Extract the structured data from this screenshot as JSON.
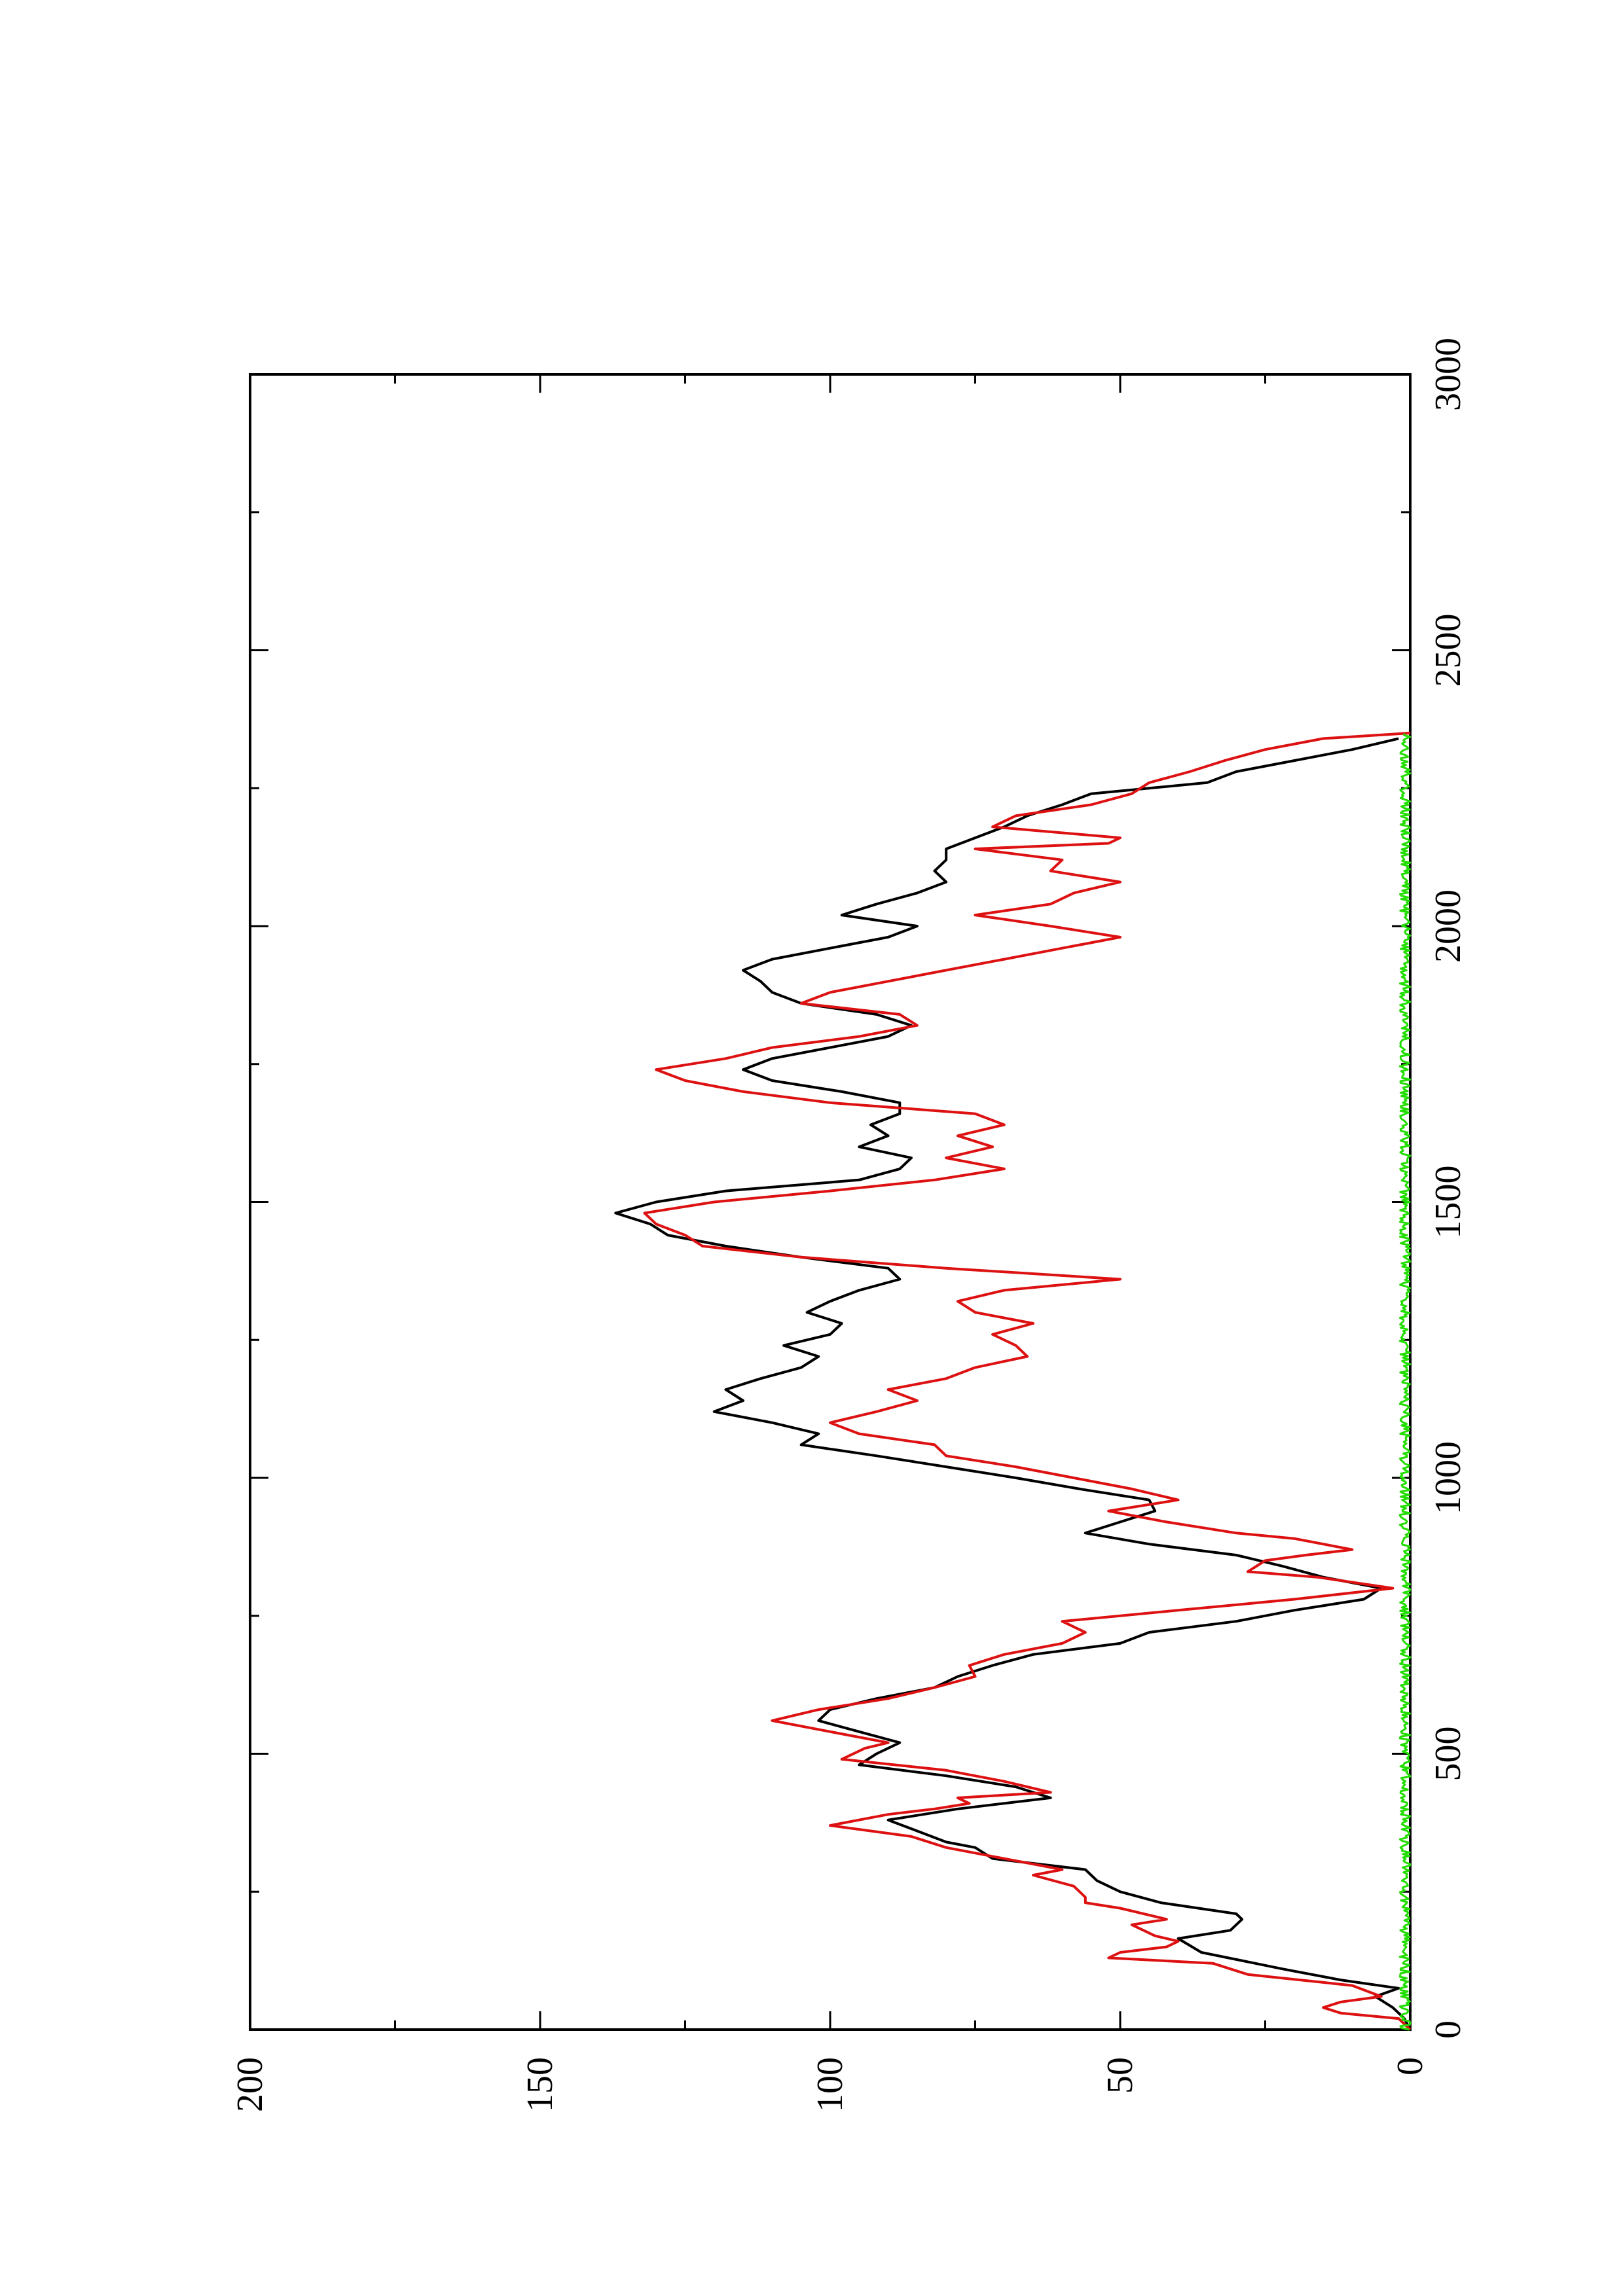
{
  "chart_data": {
    "type": "line",
    "title": "",
    "xlabel": "",
    "ylabel": "",
    "xlim": [
      0,
      3000
    ],
    "ylim": [
      0,
      200
    ],
    "x_ticks": [
      "0",
      "500",
      "1000",
      "1500",
      "2000",
      "2500",
      "3000"
    ],
    "y_ticks": [
      "0",
      "50",
      "100",
      "150",
      "200"
    ],
    "grid": false,
    "orientation": "rotated 90 degrees counter-clockwise on the page",
    "series": [
      {
        "color": "#000000",
        "points": [
          [
            0,
            0
          ],
          [
            20,
            1
          ],
          [
            40,
            3
          ],
          [
            60,
            6
          ],
          [
            75,
            2
          ],
          [
            90,
            12
          ],
          [
            110,
            22
          ],
          [
            140,
            36
          ],
          [
            165,
            40
          ],
          [
            180,
            31
          ],
          [
            200,
            29
          ],
          [
            210,
            30
          ],
          [
            230,
            43
          ],
          [
            250,
            50
          ],
          [
            270,
            54
          ],
          [
            290,
            56
          ],
          [
            310,
            72
          ],
          [
            330,
            75
          ],
          [
            340,
            80
          ],
          [
            360,
            85
          ],
          [
            380,
            90
          ],
          [
            400,
            78
          ],
          [
            420,
            62
          ],
          [
            440,
            68
          ],
          [
            460,
            80
          ],
          [
            480,
            95
          ],
          [
            500,
            92
          ],
          [
            520,
            88
          ],
          [
            540,
            95
          ],
          [
            560,
            102
          ],
          [
            580,
            100
          ],
          [
            600,
            92
          ],
          [
            620,
            82
          ],
          [
            640,
            78
          ],
          [
            660,
            72
          ],
          [
            680,
            65
          ],
          [
            700,
            50
          ],
          [
            720,
            45
          ],
          [
            740,
            30
          ],
          [
            760,
            20
          ],
          [
            780,
            8
          ],
          [
            800,
            5
          ],
          [
            820,
            15
          ],
          [
            840,
            22
          ],
          [
            860,
            30
          ],
          [
            880,
            45
          ],
          [
            900,
            56
          ],
          [
            920,
            50
          ],
          [
            940,
            44
          ],
          [
            960,
            45
          ],
          [
            980,
            57
          ],
          [
            1000,
            68
          ],
          [
            1020,
            80
          ],
          [
            1040,
            92
          ],
          [
            1060,
            105
          ],
          [
            1080,
            102
          ],
          [
            1100,
            110
          ],
          [
            1120,
            120
          ],
          [
            1140,
            115
          ],
          [
            1160,
            118
          ],
          [
            1180,
            112
          ],
          [
            1200,
            105
          ],
          [
            1220,
            102
          ],
          [
            1240,
            108
          ],
          [
            1260,
            100
          ],
          [
            1280,
            98
          ],
          [
            1300,
            104
          ],
          [
            1320,
            100
          ],
          [
            1340,
            95
          ],
          [
            1360,
            88
          ],
          [
            1380,
            90
          ],
          [
            1400,
            105
          ],
          [
            1420,
            118
          ],
          [
            1440,
            128
          ],
          [
            1460,
            131
          ],
          [
            1480,
            137
          ],
          [
            1500,
            130
          ],
          [
            1520,
            118
          ],
          [
            1540,
            95
          ],
          [
            1560,
            88
          ],
          [
            1580,
            86
          ],
          [
            1600,
            95
          ],
          [
            1620,
            90
          ],
          [
            1640,
            93
          ],
          [
            1660,
            88
          ],
          [
            1680,
            88
          ],
          [
            1700,
            98
          ],
          [
            1720,
            110
          ],
          [
            1740,
            115
          ],
          [
            1760,
            110
          ],
          [
            1780,
            100
          ],
          [
            1800,
            90
          ],
          [
            1820,
            86
          ],
          [
            1840,
            92
          ],
          [
            1860,
            105
          ],
          [
            1880,
            110
          ],
          [
            1900,
            112
          ],
          [
            1920,
            115
          ],
          [
            1940,
            110
          ],
          [
            1960,
            100
          ],
          [
            1980,
            90
          ],
          [
            2000,
            85
          ],
          [
            2020,
            98
          ],
          [
            2040,
            92
          ],
          [
            2060,
            85
          ],
          [
            2080,
            80
          ],
          [
            2100,
            82
          ],
          [
            2120,
            80
          ],
          [
            2140,
            80
          ],
          [
            2160,
            75
          ],
          [
            2180,
            70
          ],
          [
            2200,
            66
          ],
          [
            2220,
            60
          ],
          [
            2240,
            55
          ],
          [
            2260,
            35
          ],
          [
            2280,
            30
          ],
          [
            2300,
            20
          ],
          [
            2320,
            10
          ],
          [
            2340,
            2
          ]
        ]
      },
      {
        "color": "#dd1111",
        "points": [
          [
            0,
            0
          ],
          [
            20,
            2
          ],
          [
            30,
            12
          ],
          [
            40,
            15
          ],
          [
            50,
            12
          ],
          [
            60,
            5
          ],
          [
            80,
            10
          ],
          [
            100,
            28
          ],
          [
            120,
            34
          ],
          [
            130,
            52
          ],
          [
            140,
            50
          ],
          [
            150,
            42
          ],
          [
            160,
            40
          ],
          [
            170,
            44
          ],
          [
            190,
            48
          ],
          [
            200,
            42
          ],
          [
            220,
            50
          ],
          [
            230,
            56
          ],
          [
            240,
            56
          ],
          [
            260,
            58
          ],
          [
            280,
            65
          ],
          [
            290,
            60
          ],
          [
            310,
            70
          ],
          [
            330,
            80
          ],
          [
            350,
            86
          ],
          [
            370,
            100
          ],
          [
            390,
            90
          ],
          [
            400,
            82
          ],
          [
            410,
            76
          ],
          [
            420,
            78
          ],
          [
            430,
            62
          ],
          [
            450,
            70
          ],
          [
            470,
            80
          ],
          [
            490,
            98
          ],
          [
            510,
            94
          ],
          [
            520,
            90
          ],
          [
            540,
            100
          ],
          [
            560,
            110
          ],
          [
            580,
            102
          ],
          [
            600,
            90
          ],
          [
            620,
            82
          ],
          [
            640,
            75
          ],
          [
            660,
            76
          ],
          [
            680,
            70
          ],
          [
            700,
            60
          ],
          [
            720,
            56
          ],
          [
            740,
            60
          ],
          [
            760,
            40
          ],
          [
            780,
            20
          ],
          [
            800,
            3
          ],
          [
            820,
            16
          ],
          [
            830,
            28
          ],
          [
            850,
            25
          ],
          [
            860,
            18
          ],
          [
            870,
            10
          ],
          [
            890,
            20
          ],
          [
            900,
            30
          ],
          [
            920,
            42
          ],
          [
            940,
            52
          ],
          [
            960,
            40
          ],
          [
            980,
            48
          ],
          [
            1000,
            58
          ],
          [
            1020,
            68
          ],
          [
            1040,
            80
          ],
          [
            1060,
            82
          ],
          [
            1080,
            95
          ],
          [
            1100,
            100
          ],
          [
            1120,
            92
          ],
          [
            1140,
            85
          ],
          [
            1160,
            90
          ],
          [
            1180,
            80
          ],
          [
            1200,
            75
          ],
          [
            1220,
            66
          ],
          [
            1240,
            68
          ],
          [
            1260,
            72
          ],
          [
            1280,
            65
          ],
          [
            1300,
            75
          ],
          [
            1320,
            78
          ],
          [
            1340,
            70
          ],
          [
            1360,
            50
          ],
          [
            1380,
            80
          ],
          [
            1400,
            105
          ],
          [
            1420,
            122
          ],
          [
            1440,
            125
          ],
          [
            1460,
            130
          ],
          [
            1480,
            132
          ],
          [
            1500,
            120
          ],
          [
            1520,
            100
          ],
          [
            1540,
            82
          ],
          [
            1560,
            70
          ],
          [
            1580,
            80
          ],
          [
            1600,
            72
          ],
          [
            1620,
            78
          ],
          [
            1640,
            70
          ],
          [
            1660,
            75
          ],
          [
            1680,
            100
          ],
          [
            1700,
            115
          ],
          [
            1720,
            125
          ],
          [
            1740,
            130
          ],
          [
            1760,
            118
          ],
          [
            1780,
            110
          ],
          [
            1800,
            95
          ],
          [
            1820,
            85
          ],
          [
            1840,
            88
          ],
          [
            1860,
            105
          ],
          [
            1880,
            100
          ],
          [
            1900,
            90
          ],
          [
            1920,
            80
          ],
          [
            1940,
            70
          ],
          [
            1960,
            60
          ],
          [
            1980,
            50
          ],
          [
            2000,
            62
          ],
          [
            2020,
            75
          ],
          [
            2040,
            62
          ],
          [
            2060,
            58
          ],
          [
            2080,
            50
          ],
          [
            2100,
            62
          ],
          [
            2120,
            60
          ],
          [
            2140,
            75
          ],
          [
            2150,
            52
          ],
          [
            2160,
            50
          ],
          [
            2180,
            72
          ],
          [
            2200,
            68
          ],
          [
            2220,
            55
          ],
          [
            2240,
            48
          ],
          [
            2260,
            45
          ],
          [
            2280,
            38
          ],
          [
            2300,
            32
          ],
          [
            2320,
            25
          ],
          [
            2340,
            15
          ],
          [
            2350,
            0
          ]
        ]
      },
      {
        "color": "#22dd00",
        "xmax": 2350,
        "noise_amplitude": 1.8
      }
    ]
  }
}
